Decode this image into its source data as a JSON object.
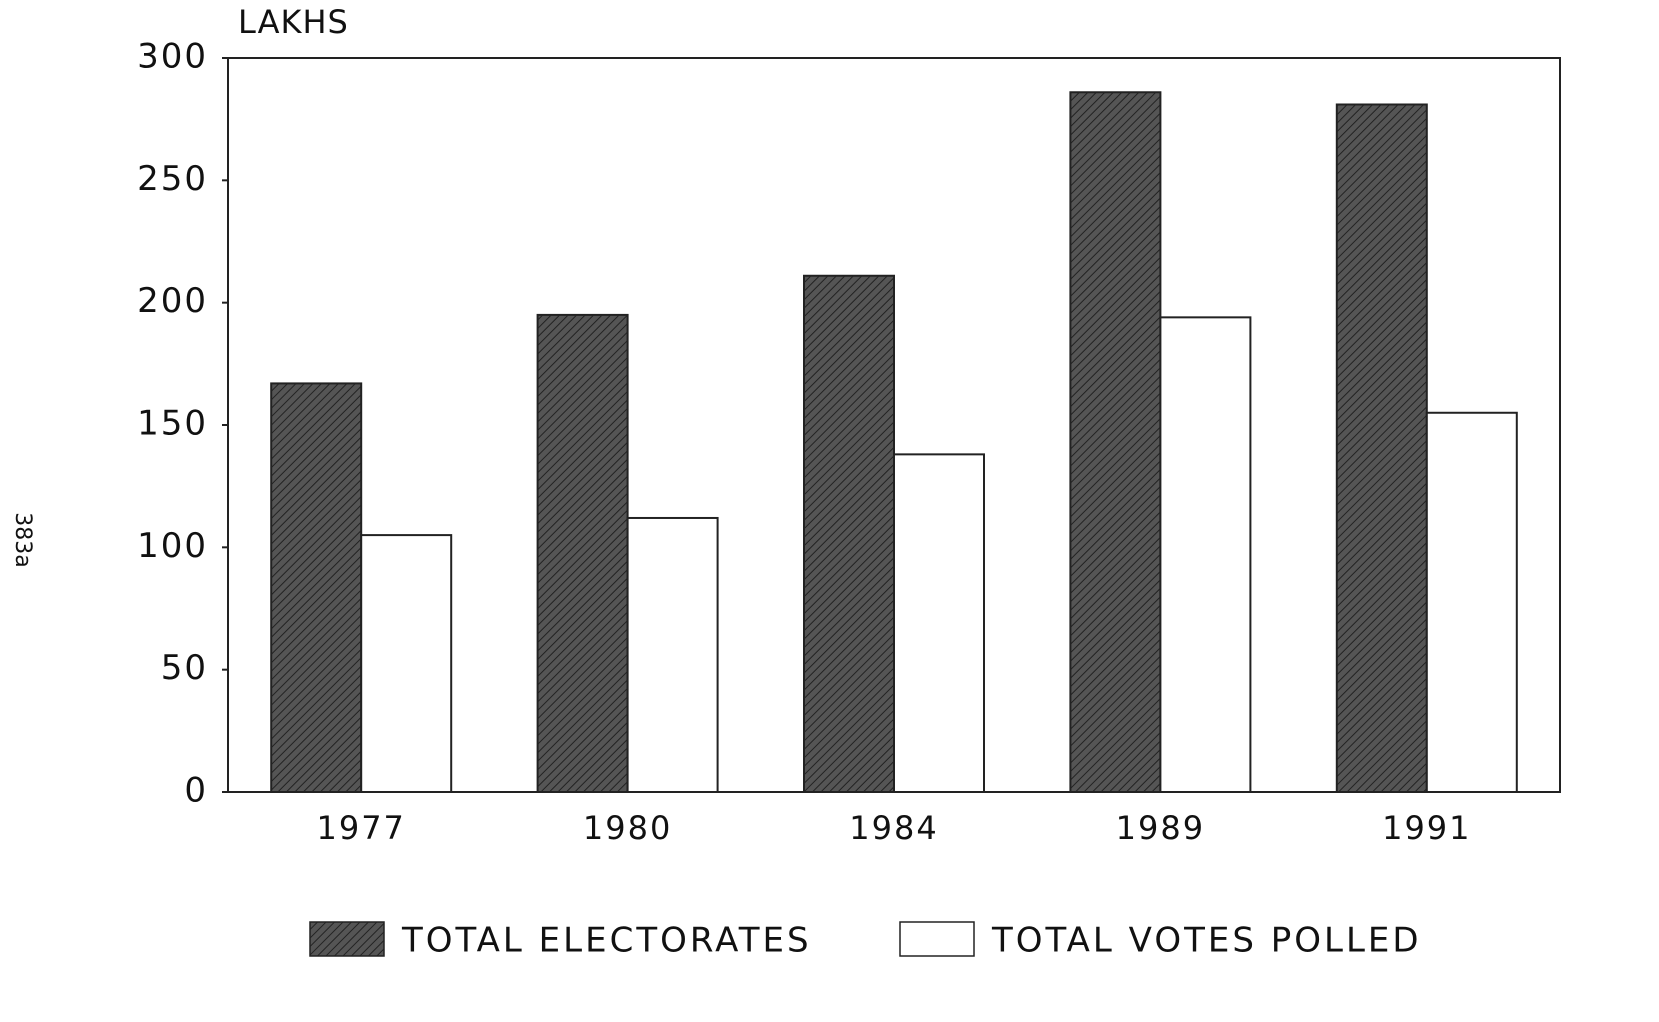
{
  "chart_data": {
    "type": "bar",
    "y_axis_label": "LAKHS",
    "page_label": "383a",
    "categories": [
      "1977",
      "1980",
      "1984",
      "1989",
      "1991"
    ],
    "series": [
      {
        "name": "TOTAL ELECTORATES",
        "color": "#555555",
        "values": [
          167,
          195,
          211,
          286,
          281
        ]
      },
      {
        "name": "TOTAL VOTES POLLED",
        "color": "#ffffff",
        "values": [
          105,
          112,
          138,
          194,
          155
        ]
      }
    ],
    "ylim": [
      0,
      300
    ],
    "yticks": [
      0,
      50,
      100,
      150,
      200,
      250,
      300
    ],
    "grid": false,
    "legend": "bottom"
  }
}
